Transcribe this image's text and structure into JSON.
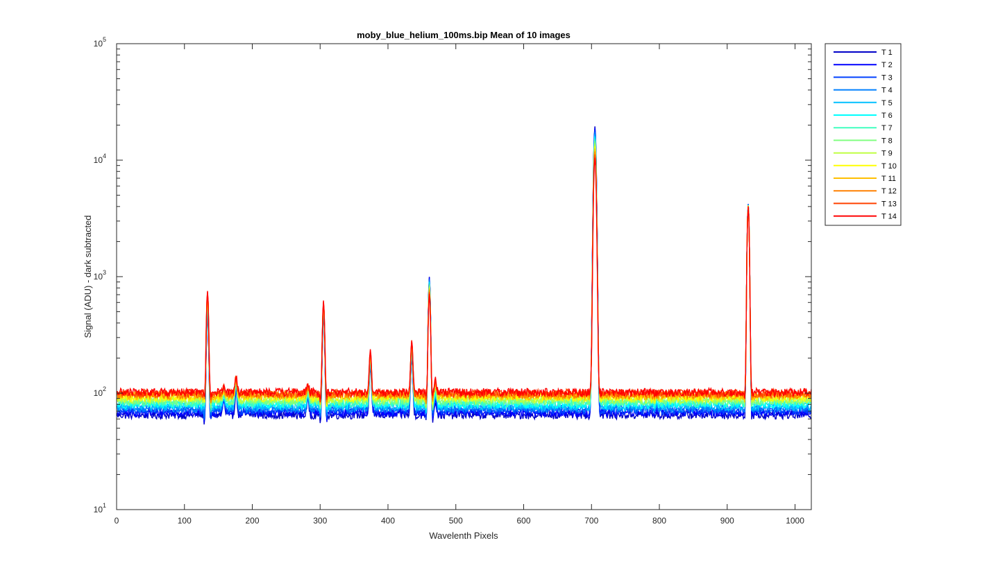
{
  "chart_data": {
    "type": "line",
    "title": "moby_blue_helium_100ms.bip  Mean of 10 images",
    "xlabel": "Wavelenth Pixels",
    "ylabel": "Signal (ADU) - dark subtracted",
    "xlim": [
      0,
      1024
    ],
    "ylim": [
      10,
      100000
    ],
    "yscale": "log",
    "grid": false,
    "legend_placement": "outside-top-right",
    "x_ticks": [
      "0",
      "100",
      "200",
      "300",
      "400",
      "500",
      "600",
      "700",
      "800",
      "900",
      "1000"
    ],
    "x_tick_values": [
      0,
      100,
      200,
      300,
      400,
      500,
      600,
      700,
      800,
      900,
      1000
    ],
    "y_ticks": [
      {
        "base": "10",
        "exp": "1",
        "value": 10
      },
      {
        "base": "10",
        "exp": "2",
        "value": 100
      },
      {
        "base": "10",
        "exp": "3",
        "value": 1000
      },
      {
        "base": "10",
        "exp": "4",
        "value": 10000
      },
      {
        "base": "10",
        "exp": "5",
        "value": 100000
      }
    ],
    "baseline_note_values": {
      "T 1": 65,
      "T 14": 102
    },
    "peaks": [
      {
        "x": 134,
        "T1": 450,
        "T14": 760,
        "max": 1030
      },
      {
        "x": 158,
        "T1": 85,
        "T14": 115,
        "max": 120
      },
      {
        "x": 176,
        "T1": 105,
        "T14": 140,
        "max": 145
      },
      {
        "x": 282,
        "T1": 90,
        "T14": 118,
        "max": 125
      },
      {
        "x": 305,
        "T1": 460,
        "T14": 620,
        "max": 790
      },
      {
        "x": 374,
        "T1": 170,
        "T14": 230,
        "max": 275
      },
      {
        "x": 435,
        "T1": 200,
        "T14": 290,
        "max": 355
      },
      {
        "x": 461,
        "T1": 1000,
        "T14": 720,
        "max": 1000
      },
      {
        "x": 470,
        "T1": 85,
        "T14": 130,
        "max": 135
      },
      {
        "x": 705,
        "T1": 19500,
        "T14": 10500,
        "max": 19500
      },
      {
        "x": 931,
        "T1": 4200,
        "T14": 4000,
        "max": 6900
      }
    ],
    "series": [
      {
        "name": "T 1",
        "color": "#0000c8",
        "baseline": 65
      },
      {
        "name": "T 2",
        "color": "#0000ff",
        "baseline": 68
      },
      {
        "name": "T 3",
        "color": "#0040ff",
        "baseline": 71
      },
      {
        "name": "T 4",
        "color": "#0080ff",
        "baseline": 74
      },
      {
        "name": "T 5",
        "color": "#00bfff",
        "baseline": 77
      },
      {
        "name": "T 6",
        "color": "#00ffff",
        "baseline": 80
      },
      {
        "name": "T 7",
        "color": "#40ffbf",
        "baseline": 83
      },
      {
        "name": "T 8",
        "color": "#80ff80",
        "baseline": 86
      },
      {
        "name": "T 9",
        "color": "#bfff40",
        "baseline": 89
      },
      {
        "name": "T 10",
        "color": "#ffff00",
        "baseline": 92
      },
      {
        "name": "T 11",
        "color": "#ffbf00",
        "baseline": 95
      },
      {
        "name": "T 12",
        "color": "#ff8000",
        "baseline": 97
      },
      {
        "name": "T 13",
        "color": "#ff4000",
        "baseline": 100
      },
      {
        "name": "T 14",
        "color": "#ff0000",
        "baseline": 102
      }
    ]
  }
}
